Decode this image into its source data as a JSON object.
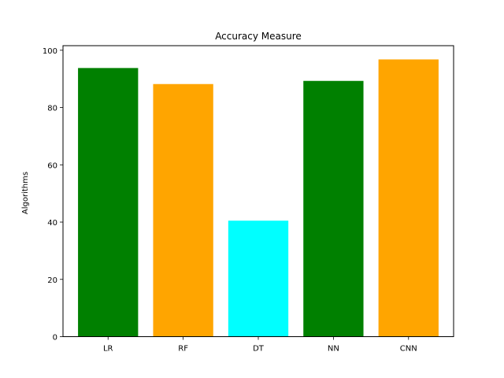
{
  "chart_data": {
    "type": "bar",
    "title": "Accuracy Measure",
    "xlabel": "",
    "ylabel": "Algorithms",
    "categories": [
      "LR",
      "RF",
      "DT",
      "NN",
      "CNN"
    ],
    "values": [
      93.8,
      88.2,
      40.5,
      89.3,
      96.8
    ],
    "colors": [
      "#008000",
      "#FFA500",
      "#00FFFF",
      "#008000",
      "#FFA500"
    ],
    "ylim": [
      0,
      101.6
    ],
    "yticks": [
      0,
      20,
      40,
      60,
      80,
      100
    ],
    "grid": false
  }
}
